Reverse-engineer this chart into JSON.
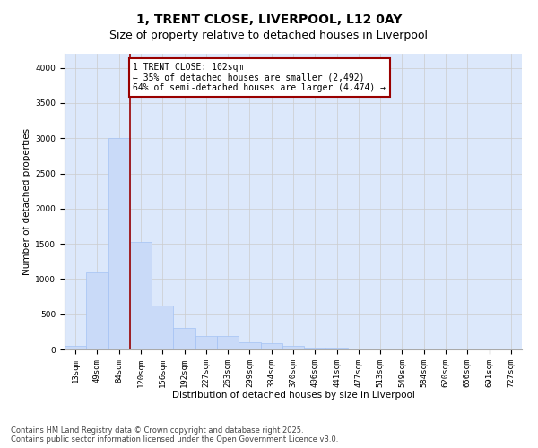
{
  "title": "1, TRENT CLOSE, LIVERPOOL, L12 0AY",
  "subtitle": "Size of property relative to detached houses in Liverpool",
  "xlabel": "Distribution of detached houses by size in Liverpool",
  "ylabel": "Number of detached properties",
  "bar_labels": [
    "13sqm",
    "49sqm",
    "84sqm",
    "120sqm",
    "156sqm",
    "192sqm",
    "227sqm",
    "263sqm",
    "299sqm",
    "334sqm",
    "370sqm",
    "406sqm",
    "441sqm",
    "477sqm",
    "513sqm",
    "549sqm",
    "584sqm",
    "620sqm",
    "656sqm",
    "691sqm",
    "727sqm"
  ],
  "bar_values": [
    55,
    1100,
    3000,
    1530,
    630,
    310,
    190,
    190,
    100,
    90,
    50,
    30,
    20,
    10,
    5,
    5,
    5,
    5,
    0,
    0,
    0
  ],
  "bar_color": "#c9daf8",
  "bar_edge_color": "#a4c2f4",
  "red_line_color": "#990000",
  "annotation_text": "1 TRENT CLOSE: 102sqm\n← 35% of detached houses are smaller (2,492)\n64% of semi-detached houses are larger (4,474) →",
  "annotation_box_color": "#ffffff",
  "annotation_box_edge_color": "#990000",
  "ylim": [
    0,
    4200
  ],
  "yticks": [
    0,
    500,
    1000,
    1500,
    2000,
    2500,
    3000,
    3500,
    4000
  ],
  "grid_color": "#cccccc",
  "plot_bg_color": "#dce8fb",
  "footer_line1": "Contains HM Land Registry data © Crown copyright and database right 2025.",
  "footer_line2": "Contains public sector information licensed under the Open Government Licence v3.0.",
  "title_fontsize": 10,
  "subtitle_fontsize": 9,
  "label_fontsize": 7.5,
  "tick_fontsize": 6.5,
  "annotation_fontsize": 7,
  "red_line_x": 2.5
}
